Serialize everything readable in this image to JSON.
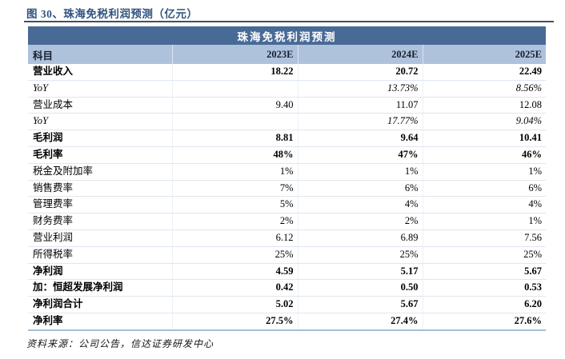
{
  "page": {
    "title": "图 30、珠海免税利润预测（亿元）",
    "source_note": "资料来源：公司公告，信达证券研发中心"
  },
  "colors": {
    "title_text": "#31537F",
    "title_rule": "#435062",
    "banner_bg": "#486A96",
    "banner_text": "#FFFFFF",
    "header_row_bg": "#AEC2DC",
    "table_bottom_border": "#A6BDD6",
    "row_separator": "#DFE6F0"
  },
  "table": {
    "banner": "珠海免税利润预测",
    "columns": [
      "科目",
      "2023E",
      "2024E",
      "2025E"
    ],
    "rows": [
      {
        "label": "营业收入",
        "values": [
          "18.22",
          "20.72",
          "22.49"
        ],
        "style": "bold"
      },
      {
        "label": "YoY",
        "values": [
          "",
          "13.73%",
          "8.56%"
        ],
        "style": "italic"
      },
      {
        "label": "营业成本",
        "values": [
          "9.40",
          "11.07",
          "12.08"
        ],
        "style": "normal"
      },
      {
        "label": "YoY",
        "values": [
          "",
          "17.77%",
          "9.04%"
        ],
        "style": "italic"
      },
      {
        "label": "毛利润",
        "values": [
          "8.81",
          "9.64",
          "10.41"
        ],
        "style": "bold"
      },
      {
        "label": "毛利率",
        "values": [
          "48%",
          "47%",
          "46%"
        ],
        "style": "bold"
      },
      {
        "label": "税金及附加率",
        "values": [
          "1%",
          "1%",
          "1%"
        ],
        "style": "normal"
      },
      {
        "label": "销售费率",
        "values": [
          "7%",
          "6%",
          "6%"
        ],
        "style": "normal"
      },
      {
        "label": "管理费率",
        "values": [
          "5%",
          "4%",
          "4%"
        ],
        "style": "normal"
      },
      {
        "label": "财务费率",
        "values": [
          "2%",
          "2%",
          "1%"
        ],
        "style": "normal"
      },
      {
        "label": "营业利润",
        "values": [
          "6.12",
          "6.89",
          "7.56"
        ],
        "style": "normal"
      },
      {
        "label": "所得税率",
        "values": [
          "25%",
          "25%",
          "25%"
        ],
        "style": "normal"
      },
      {
        "label": "净利润",
        "values": [
          "4.59",
          "5.17",
          "5.67"
        ],
        "style": "bold"
      },
      {
        "label": "加：恒超发展净利润",
        "values": [
          "0.42",
          "0.50",
          "0.53"
        ],
        "style": "bold"
      },
      {
        "label": "净利润合计",
        "values": [
          "5.02",
          "5.67",
          "6.20"
        ],
        "style": "bold"
      },
      {
        "label": "净利率",
        "values": [
          "27.5%",
          "27.4%",
          "27.6%"
        ],
        "style": "bold"
      }
    ]
  }
}
